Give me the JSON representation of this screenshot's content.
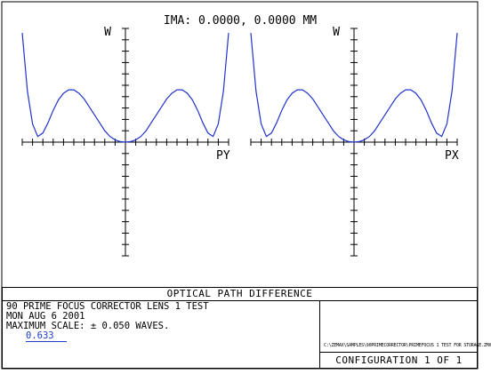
{
  "header": {
    "field_label": "IMA: 0.0000, 0.0000 MM"
  },
  "chart_data": [
    {
      "type": "line",
      "panel": "tangential",
      "ylabel": "W",
      "xlabel": "PY",
      "xlim": [
        -1,
        1
      ],
      "ylim": [
        -1,
        1
      ],
      "series": [
        {
          "color": "#2233cc",
          "x": [
            -1.0,
            -0.95,
            -0.9,
            -0.85,
            -0.8,
            -0.75,
            -0.7,
            -0.65,
            -0.6,
            -0.55,
            -0.5,
            -0.45,
            -0.4,
            -0.35,
            -0.3,
            -0.25,
            -0.2,
            -0.15,
            -0.1,
            -0.05,
            0.0,
            0.05,
            0.1,
            0.15,
            0.2,
            0.25,
            0.3,
            0.35,
            0.4,
            0.45,
            0.5,
            0.55,
            0.6,
            0.65,
            0.7,
            0.75,
            0.8,
            0.85,
            0.9,
            0.95,
            1.0
          ],
          "y": [
            0.96,
            0.45,
            0.16,
            0.05,
            0.08,
            0.17,
            0.28,
            0.37,
            0.43,
            0.46,
            0.46,
            0.43,
            0.38,
            0.31,
            0.24,
            0.17,
            0.1,
            0.05,
            0.02,
            0.005,
            0.0,
            0.005,
            0.02,
            0.05,
            0.1,
            0.17,
            0.24,
            0.31,
            0.38,
            0.43,
            0.46,
            0.46,
            0.43,
            0.37,
            0.28,
            0.17,
            0.08,
            0.05,
            0.16,
            0.45,
            0.96
          ]
        }
      ]
    },
    {
      "type": "line",
      "panel": "sagittal",
      "ylabel": "W",
      "xlabel": "PX",
      "xlim": [
        -1,
        1
      ],
      "ylim": [
        -1,
        1
      ],
      "series": [
        {
          "color": "#2233cc",
          "x": [
            -1.0,
            -0.95,
            -0.9,
            -0.85,
            -0.8,
            -0.75,
            -0.7,
            -0.65,
            -0.6,
            -0.55,
            -0.5,
            -0.45,
            -0.4,
            -0.35,
            -0.3,
            -0.25,
            -0.2,
            -0.15,
            -0.1,
            -0.05,
            0.0,
            0.05,
            0.1,
            0.15,
            0.2,
            0.25,
            0.3,
            0.35,
            0.4,
            0.45,
            0.5,
            0.55,
            0.6,
            0.65,
            0.7,
            0.75,
            0.8,
            0.85,
            0.9,
            0.95,
            1.0
          ],
          "y": [
            0.96,
            0.45,
            0.16,
            0.05,
            0.08,
            0.17,
            0.28,
            0.37,
            0.43,
            0.46,
            0.46,
            0.43,
            0.38,
            0.31,
            0.24,
            0.17,
            0.1,
            0.05,
            0.02,
            0.005,
            0.0,
            0.005,
            0.02,
            0.05,
            0.1,
            0.17,
            0.24,
            0.31,
            0.38,
            0.43,
            0.46,
            0.46,
            0.43,
            0.37,
            0.28,
            0.17,
            0.08,
            0.05,
            0.16,
            0.45,
            0.96
          ]
        }
      ]
    }
  ],
  "footer": {
    "title": "OPTICAL PATH DIFFERENCE",
    "line1": "90 PRIME FOCUS CORRECTOR LENS 1 TEST",
    "line2": "MON AUG 6 2001",
    "line3": "MAXIMUM SCALE: ± 0.050 WAVES.",
    "wavelength": "0.633",
    "lens_note": "C:\\ZEMAX\\SAMPLES\\90PRIMECORRECTOR\\PRIMEFOCUS 1 TEST FOR STORAGE.ZMX",
    "configuration": "CONFIGURATION 1 OF 1"
  }
}
